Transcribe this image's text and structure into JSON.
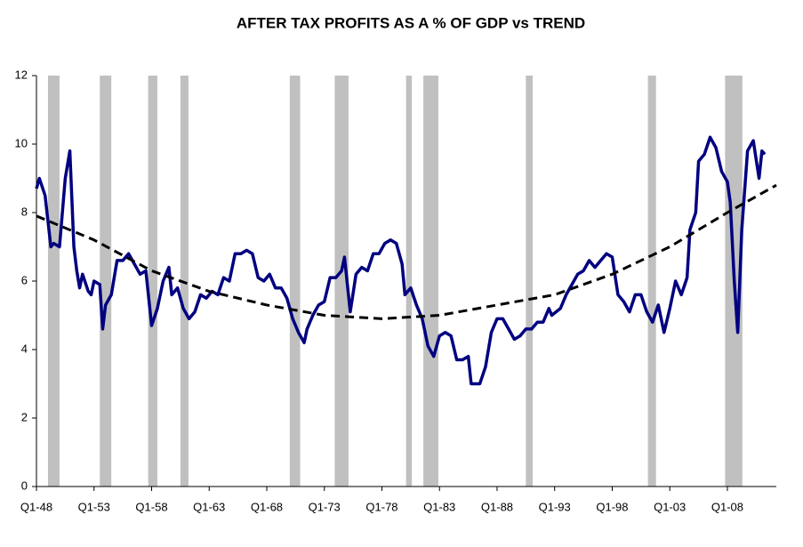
{
  "chart_data": {
    "type": "line",
    "title": "AFTER TAX PROFITS AS A % OF GDP vs TREND",
    "xlim": [
      1948,
      2012.25
    ],
    "xticks": [
      {
        "value": 1948,
        "label": "Q1-48"
      },
      {
        "value": 1953,
        "label": "Q1-53"
      },
      {
        "value": 1958,
        "label": "Q1-58"
      },
      {
        "value": 1963,
        "label": "Q1-63"
      },
      {
        "value": 1968,
        "label": "Q1-68"
      },
      {
        "value": 1973,
        "label": "Q1-73"
      },
      {
        "value": 1978,
        "label": "Q1-78"
      },
      {
        "value": 1983,
        "label": "Q1-83"
      },
      {
        "value": 1988,
        "label": "Q1-88"
      },
      {
        "value": 1993,
        "label": "Q1-93"
      },
      {
        "value": 1998,
        "label": "Q1-98"
      },
      {
        "value": 2003,
        "label": "Q1-03"
      },
      {
        "value": 2008,
        "label": "Q1-08"
      }
    ],
    "ylim": [
      0,
      12
    ],
    "yticks": [
      0,
      2,
      4,
      6,
      8,
      10,
      12
    ],
    "grid": false,
    "recession_color": "#c0c0c0",
    "recessions": [
      [
        1949.0,
        1950.0
      ],
      [
        1953.5,
        1954.5
      ],
      [
        1957.7,
        1958.5
      ],
      [
        1960.5,
        1961.2
      ],
      [
        1970.0,
        1970.9
      ],
      [
        1973.9,
        1975.1
      ],
      [
        1980.1,
        1980.6
      ],
      [
        1981.6,
        1982.9
      ],
      [
        1990.5,
        1991.1
      ],
      [
        2001.1,
        2001.8
      ],
      [
        2007.8,
        2009.3
      ]
    ],
    "series": [
      {
        "color": "#000080",
        "dash": false,
        "x": [
          1948.0,
          1948.25,
          1948.75,
          1949.25,
          1949.5,
          1950.0,
          1950.5,
          1950.9,
          1951.25,
          1951.5,
          1951.75,
          1952.0,
          1952.5,
          1952.75,
          1953.0,
          1953.5,
          1953.75,
          1954.0,
          1954.5,
          1955.0,
          1955.5,
          1956.0,
          1956.5,
          1957.0,
          1957.5,
          1958.0,
          1958.5,
          1959.0,
          1959.5,
          1959.75,
          1960.25,
          1960.75,
          1961.25,
          1961.75,
          1962.25,
          1962.75,
          1963.25,
          1963.75,
          1964.25,
          1964.75,
          1965.25,
          1965.75,
          1966.25,
          1966.75,
          1967.25,
          1967.75,
          1968.25,
          1968.75,
          1969.25,
          1969.75,
          1970.25,
          1970.75,
          1971.25,
          1971.5,
          1972.0,
          1972.5,
          1973.0,
          1973.5,
          1974.0,
          1974.5,
          1974.75,
          1975.25,
          1975.75,
          1976.25,
          1976.75,
          1977.25,
          1977.75,
          1978.25,
          1978.75,
          1979.25,
          1979.75,
          1980.0,
          1980.5,
          1981.0,
          1981.5,
          1982.0,
          1982.5,
          1983.0,
          1983.5,
          1984.0,
          1984.5,
          1985.0,
          1985.5,
          1985.75,
          1986.5,
          1987.0,
          1987.5,
          1988.0,
          1988.5,
          1989.0,
          1989.5,
          1990.0,
          1990.5,
          1991.0,
          1991.5,
          1992.0,
          1992.5,
          1992.75,
          1993.5,
          1994.0,
          1994.5,
          1995.0,
          1995.5,
          1996.0,
          1996.5,
          1997.0,
          1997.5,
          1998.0,
          1998.5,
          1999.0,
          1999.5,
          2000.0,
          2000.5,
          2001.0,
          2001.5,
          2002.0,
          2002.5,
          2003.0,
          2003.5,
          2004.0,
          2004.5,
          2004.75,
          2005.25,
          2005.5,
          2006.0,
          2006.5,
          2007.0,
          2007.5,
          2008.0,
          2008.25,
          2008.6,
          2008.9,
          2009.25,
          2009.75,
          2010.25,
          2010.75,
          2011.0,
          2011.25
        ],
        "values": [
          8.7,
          9.0,
          8.5,
          7.0,
          7.1,
          7.0,
          9.0,
          9.8,
          7.0,
          6.3,
          5.8,
          6.2,
          5.7,
          5.6,
          6.0,
          5.9,
          4.6,
          5.3,
          5.6,
          6.6,
          6.6,
          6.8,
          6.5,
          6.2,
          6.3,
          4.7,
          5.2,
          6.0,
          6.4,
          5.6,
          5.8,
          5.2,
          4.9,
          5.1,
          5.6,
          5.5,
          5.7,
          5.6,
          6.1,
          6.0,
          6.8,
          6.8,
          6.9,
          6.8,
          6.1,
          6.0,
          6.2,
          5.8,
          5.8,
          5.5,
          4.9,
          4.5,
          4.2,
          4.6,
          5.0,
          5.3,
          5.4,
          6.1,
          6.1,
          6.3,
          6.7,
          5.1,
          6.2,
          6.4,
          6.3,
          6.8,
          6.8,
          7.1,
          7.2,
          7.1,
          6.5,
          5.6,
          5.8,
          5.3,
          4.9,
          4.1,
          3.8,
          4.4,
          4.5,
          4.4,
          3.7,
          3.7,
          3.8,
          3.0,
          3.0,
          3.5,
          4.5,
          4.9,
          4.9,
          4.6,
          4.3,
          4.4,
          4.6,
          4.6,
          4.8,
          4.8,
          5.2,
          5.0,
          5.2,
          5.6,
          5.9,
          6.2,
          6.3,
          6.6,
          6.4,
          6.6,
          6.8,
          6.7,
          5.6,
          5.4,
          5.1,
          5.6,
          5.6,
          5.1,
          4.8,
          5.3,
          4.5,
          5.2,
          6.0,
          5.6,
          6.1,
          7.5,
          8.0,
          9.5,
          9.7,
          10.2,
          9.9,
          9.2,
          8.9,
          8.3,
          6.0,
          4.5,
          7.5,
          9.8,
          10.1,
          9.0,
          9.8,
          9.7
        ]
      },
      {
        "color": "#000000",
        "dash": true,
        "x": [
          1948,
          1953,
          1958,
          1963,
          1968,
          1973,
          1978,
          1983,
          1988,
          1993,
          1998,
          2003,
          2008,
          2012.25
        ],
        "values": [
          7.9,
          7.2,
          6.3,
          5.7,
          5.3,
          5.0,
          4.9,
          5.0,
          5.3,
          5.6,
          6.2,
          7.0,
          8.0,
          8.8
        ]
      }
    ]
  }
}
